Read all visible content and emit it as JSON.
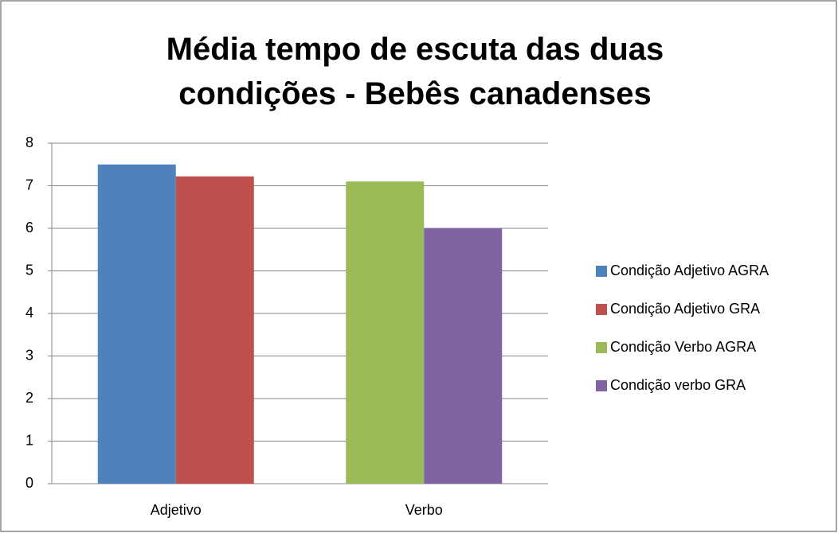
{
  "chart_data": {
    "type": "bar",
    "title": "Média tempo de escuta das duas condições - Bebês canadenses",
    "categories": [
      "Adjetivo",
      "Verbo"
    ],
    "series": [
      {
        "name": "Condição Adjetivo AGRA",
        "color": "#4f81bd",
        "values": [
          7.5,
          null
        ]
      },
      {
        "name": "Condição Adjetivo GRA",
        "color": "#c0504d",
        "values": [
          7.22,
          null
        ]
      },
      {
        "name": "Condição Verbo AGRA",
        "color": "#9bbb59",
        "values": [
          null,
          7.1
        ]
      },
      {
        "name": "Condição verbo GRA",
        "color": "#8064a2",
        "values": [
          null,
          6.0
        ]
      }
    ],
    "ylim": [
      0,
      8
    ],
    "yticks": [
      0,
      1,
      2,
      3,
      4,
      5,
      6,
      7,
      8
    ],
    "grid": true,
    "legend": "right"
  }
}
